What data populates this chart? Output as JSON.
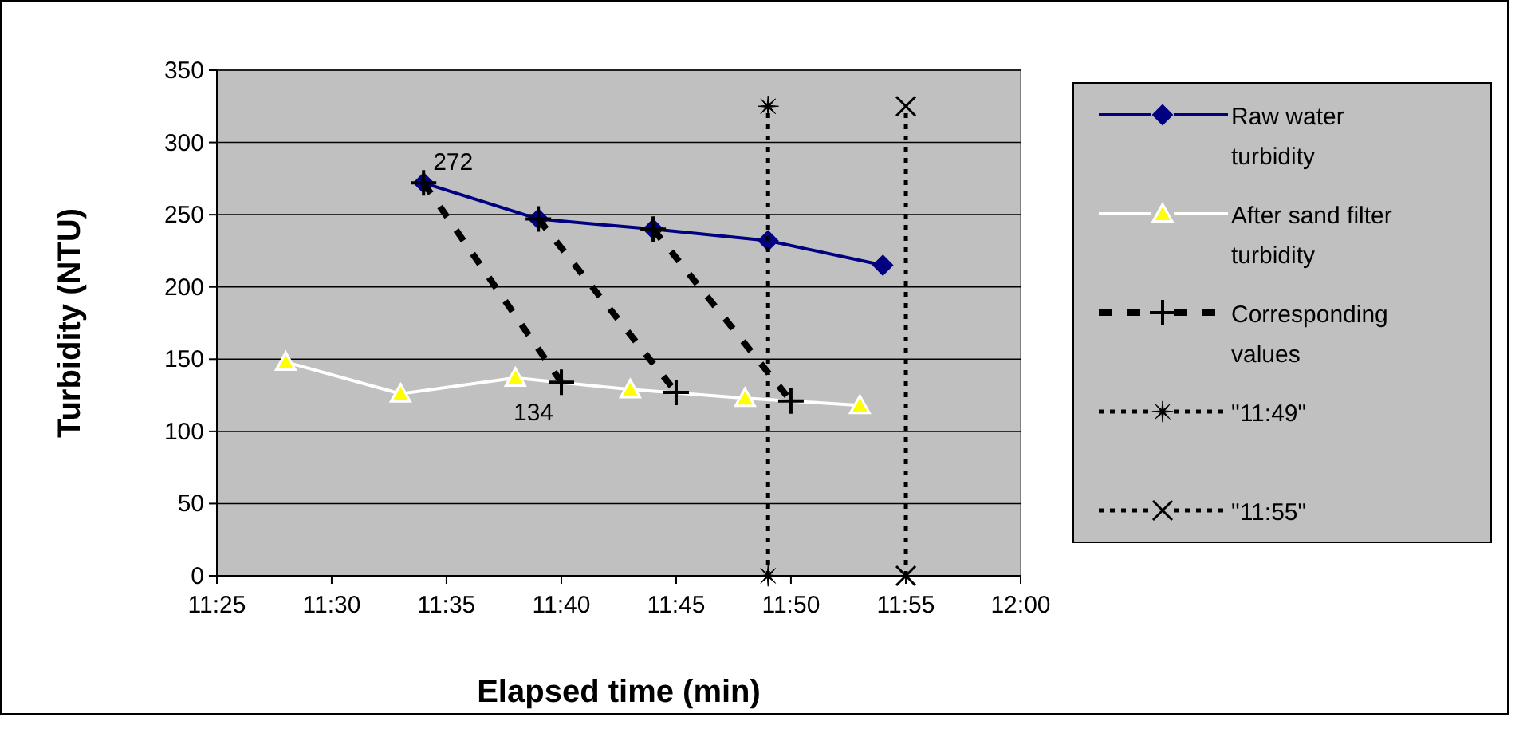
{
  "chart_data": {
    "type": "line",
    "xlabel": "Elapsed time (min)",
    "ylabel": "Turbidity (NTU)",
    "xlim": [
      11.4167,
      12
    ],
    "xticks": [
      {
        "value": 11.4167,
        "label": "11:25"
      },
      {
        "value": 11.5,
        "label": "11:30"
      },
      {
        "value": 11.5833,
        "label": "11:35"
      },
      {
        "value": 11.6667,
        "label": "11:40"
      },
      {
        "value": 11.75,
        "label": "11:45"
      },
      {
        "value": 11.8333,
        "label": "11:50"
      },
      {
        "value": 11.9167,
        "label": "11:55"
      },
      {
        "value": 12,
        "label": "12:00"
      }
    ],
    "ylim": [
      0,
      350
    ],
    "yticks": [
      0,
      50,
      100,
      150,
      200,
      250,
      300,
      350
    ],
    "grid": "y",
    "legend": "right",
    "series": [
      {
        "name": "Raw water turbidity",
        "color": "#000080",
        "marker": "diamond",
        "line_style": "solid",
        "x": [
          11.5667,
          11.65,
          11.7333,
          11.8167,
          11.9
        ],
        "values": [
          272,
          247,
          240,
          232,
          215
        ],
        "value_labels": [
          "272",
          null,
          null,
          null,
          null
        ]
      },
      {
        "name": "After sand filter turbidity",
        "color": "#ffffff",
        "marker": "triangle",
        "line_style": "solid",
        "x": [
          11.4667,
          11.55,
          11.6333,
          11.7167,
          11.8,
          11.8833
        ],
        "values": [
          148,
          126,
          137,
          129,
          123,
          118
        ]
      },
      {
        "name": "Corresponding values",
        "color": "#000000",
        "marker": "plus",
        "line_style": "dashed",
        "x": [
          11.5667,
          11.6667,
          null,
          11.65,
          11.75,
          null,
          11.7333,
          11.8333
        ],
        "values": [
          272,
          134,
          null,
          247,
          127,
          null,
          240,
          121
        ],
        "value_labels": [
          null,
          "134",
          null,
          null,
          null,
          null,
          null,
          null
        ]
      },
      {
        "name": "\"11:49\"",
        "color": "#000000",
        "marker": "star",
        "line_style": "dotted",
        "x": [
          11.8167,
          11.8167
        ],
        "values": [
          0,
          325
        ]
      },
      {
        "name": "\"11:55\"",
        "color": "#000000",
        "marker": "cross",
        "line_style": "dotted",
        "x": [
          11.9167,
          11.9167
        ],
        "values": [
          0,
          325
        ]
      }
    ]
  }
}
